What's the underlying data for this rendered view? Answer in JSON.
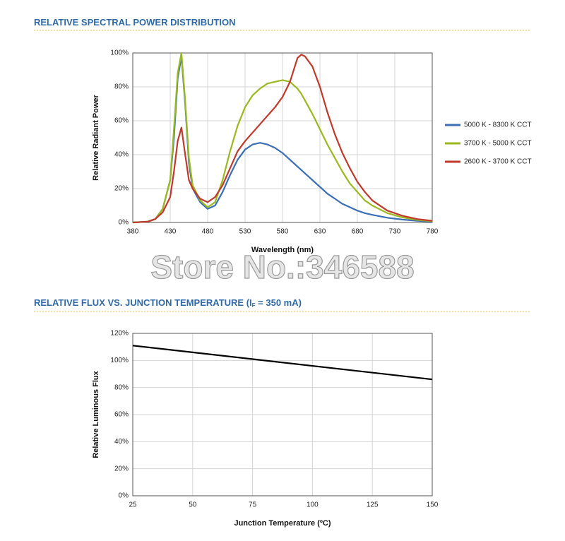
{
  "chart_data": [
    {
      "type": "line",
      "title": [
        "RELATIVE SPECTRAL POWER DISTRIBUTION"
      ],
      "x_label": "Wavelength (nm)",
      "y_label": "Relative Radiant Power",
      "x": [
        380,
        400,
        410,
        420,
        430,
        435,
        440,
        445,
        450,
        455,
        460,
        470,
        480,
        490,
        500,
        510,
        520,
        530,
        540,
        550,
        560,
        570,
        580,
        590,
        600,
        605,
        610,
        620,
        630,
        640,
        650,
        660,
        670,
        680,
        690,
        700,
        720,
        740,
        760,
        780
      ],
      "series": [
        {
          "name": "5000 K - 8300 K CCT",
          "color": "#3a6fb5",
          "values": [
            0,
            0.5,
            2,
            8,
            25,
            50,
            85,
            98,
            70,
            35,
            20,
            12,
            8,
            10,
            18,
            28,
            37,
            43,
            46,
            47,
            46,
            44,
            41,
            37,
            33,
            31,
            29,
            25,
            21,
            17,
            14,
            11,
            9,
            7,
            5.5,
            4.5,
            2.8,
            1.7,
            1,
            0.5
          ]
        },
        {
          "name": "3700 K - 5000 K CCT",
          "color": "#9ab91f",
          "values": [
            0,
            0.5,
            2,
            8,
            25,
            55,
            88,
            100,
            72,
            38,
            22,
            13,
            9,
            12,
            25,
            42,
            57,
            68,
            75,
            79,
            82,
            83,
            84,
            83,
            79,
            76,
            72,
            64,
            55,
            46,
            38,
            30,
            23,
            18,
            13,
            10,
            5.5,
            3,
            1.5,
            0.8
          ]
        },
        {
          "name": "2600 K - 3700 K CCT",
          "color": "#c0392b",
          "values": [
            0,
            0.5,
            2,
            6,
            15,
            30,
            48,
            56,
            40,
            25,
            20,
            14,
            12,
            15,
            22,
            32,
            42,
            48,
            53,
            58,
            63,
            68,
            74,
            83,
            97,
            99,
            98,
            92,
            80,
            65,
            52,
            41,
            32,
            24,
            18,
            13,
            7,
            4,
            2,
            1
          ]
        }
      ],
      "xlim": [
        380,
        780
      ],
      "xticks": [
        380,
        430,
        480,
        530,
        580,
        630,
        680,
        730,
        780
      ],
      "ylim": [
        0,
        100
      ],
      "yticks": [
        {
          "value": 0,
          "label": "0%"
        },
        {
          "value": 20,
          "label": "20%"
        },
        {
          "value": 40,
          "label": "40%"
        },
        {
          "value": 60,
          "label": "60%"
        },
        {
          "value": 80,
          "label": "80%"
        },
        {
          "value": 100,
          "label": "100%"
        }
      ],
      "grid": true,
      "legend": "right"
    },
    {
      "type": "line",
      "title": [
        "RELATIVE FLUX VS. JUNCTION TEMPERATURE (I",
        "F",
        " = 350 mA)"
      ],
      "x_label": "Junction Temperature (ºC)",
      "y_label": "Relative Luminous Flux",
      "x": [
        25,
        150
      ],
      "series": [
        {
          "color": "#000000",
          "values": [
            111,
            86
          ]
        }
      ],
      "xlim": [
        25,
        150
      ],
      "xticks": [
        25,
        50,
        75,
        100,
        125,
        150
      ],
      "ylim": [
        0,
        120
      ],
      "yticks": [
        {
          "value": 0,
          "label": "0%"
        },
        {
          "value": 20,
          "label": "20%"
        },
        {
          "value": 40,
          "label": "40%"
        },
        {
          "value": 60,
          "label": "60%"
        },
        {
          "value": 80,
          "label": "80%"
        },
        {
          "value": 100,
          "label": "100%"
        },
        {
          "value": 120,
          "label": "120%"
        }
      ],
      "grid": true
    }
  ],
  "watermark": "Store No.:346588"
}
